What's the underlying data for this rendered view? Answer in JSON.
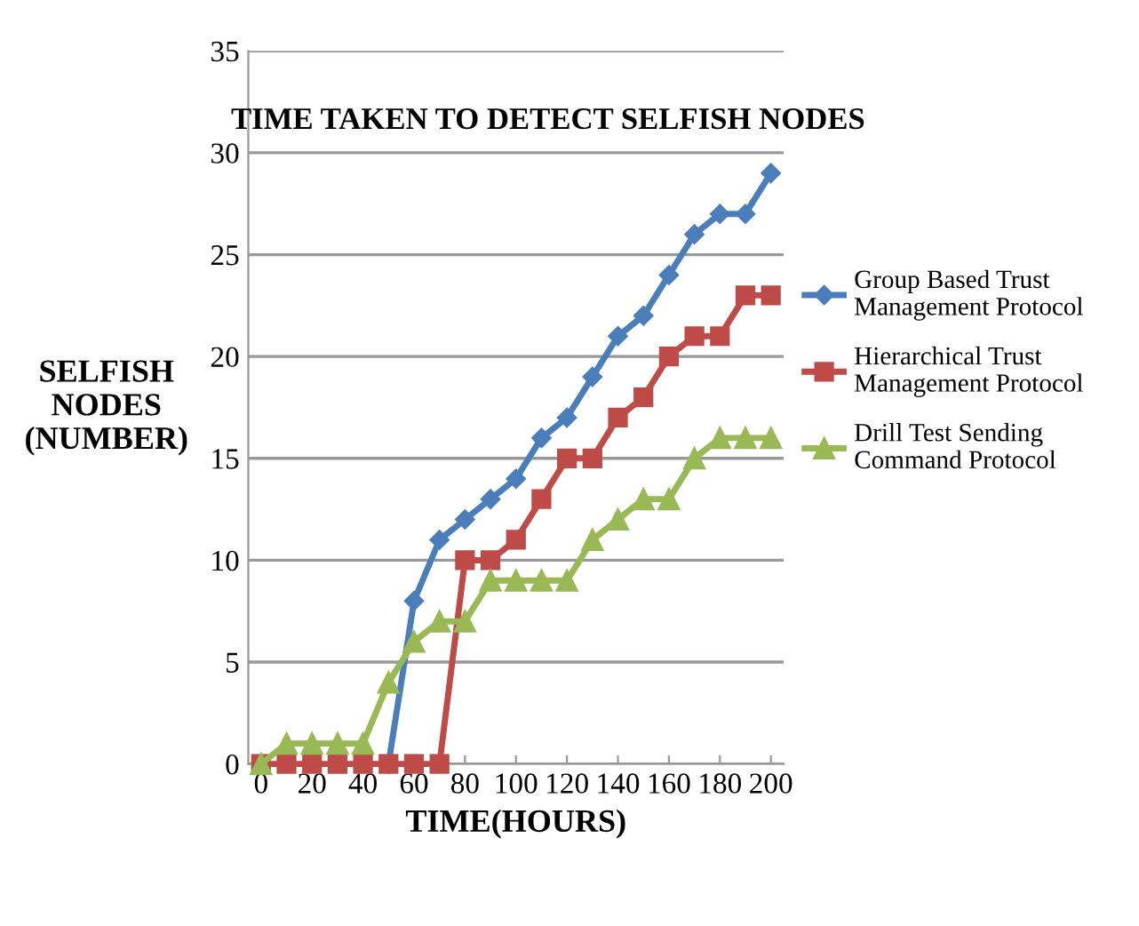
{
  "chart_data": {
    "type": "line",
    "title": "TIME TAKEN TO DETECT SELFISH NODES",
    "xlabel": "TIME(HOURS)",
    "ylabel": "SELFISH\nNODES\n(NUMBER)",
    "x": [
      0,
      10,
      20,
      30,
      40,
      50,
      60,
      70,
      80,
      90,
      100,
      110,
      120,
      130,
      140,
      150,
      160,
      170,
      180,
      190,
      200
    ],
    "series": [
      {
        "name": "Group Based Trust\nManagement Protocol",
        "color": "#4a7ebb",
        "marker": "diamond",
        "values": [
          null,
          null,
          null,
          null,
          null,
          0,
          8,
          11,
          12,
          13,
          14,
          16,
          17,
          19,
          21,
          22,
          24,
          26,
          27,
          27,
          29
        ]
      },
      {
        "name": "Hierarchical Trust\nManagement Protocol",
        "color": "#be4b48",
        "marker": "square",
        "values": [
          0,
          0,
          0,
          0,
          0,
          0,
          0,
          0,
          10,
          10,
          11,
          13,
          15,
          15,
          17,
          18,
          20,
          21,
          21,
          23,
          23
        ]
      },
      {
        "name": "Drill Test Sending\nCommand Protocol",
        "color": "#98b954",
        "marker": "triangle",
        "values": [
          0,
          1,
          1,
          1,
          1,
          4,
          6,
          7,
          7,
          9,
          9,
          9,
          9,
          11,
          12,
          13,
          13,
          15,
          16,
          16,
          16
        ]
      }
    ],
    "xlim": [
      -5,
      205
    ],
    "xticks": [
      0,
      20,
      40,
      60,
      80,
      100,
      120,
      140,
      160,
      180,
      200
    ],
    "ylim": [
      0,
      35
    ],
    "yticks": [
      0,
      5,
      10,
      15,
      20,
      25,
      30,
      35
    ],
    "grid": "y",
    "legend": "right",
    "line_style": "solid"
  }
}
